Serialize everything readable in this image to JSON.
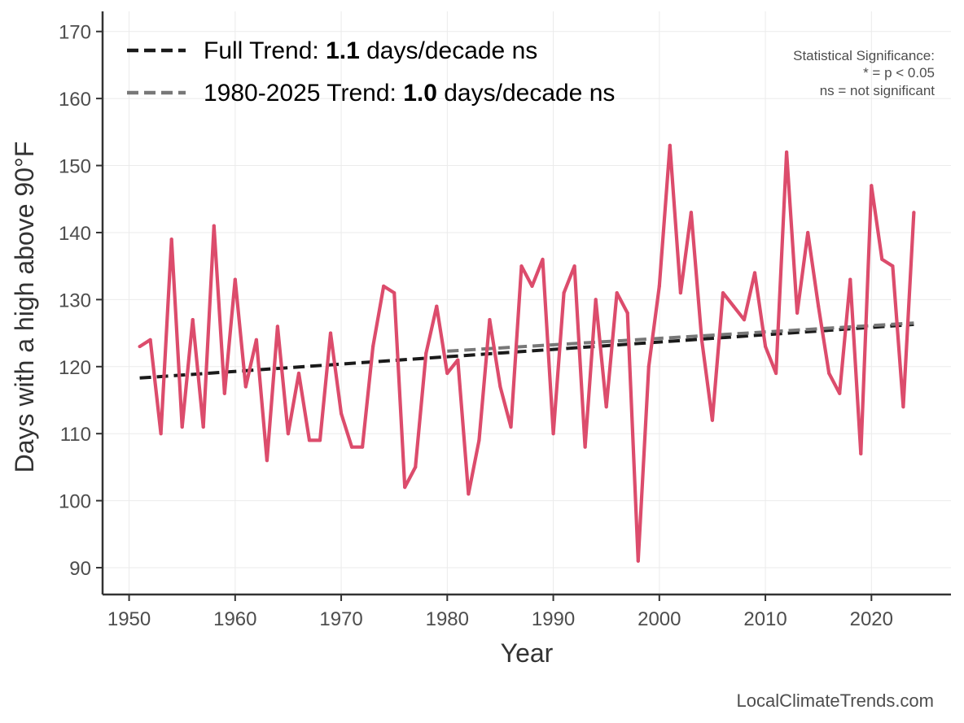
{
  "chart_data": {
    "type": "line",
    "xlabel": "Year",
    "ylabel": "Days with a high above 90°F",
    "xlim": [
      1947.5,
      2027.5
    ],
    "ylim": [
      86,
      173
    ],
    "x_ticks": [
      1950,
      1960,
      1970,
      1980,
      1990,
      2000,
      2010,
      2020
    ],
    "y_ticks": [
      90,
      100,
      110,
      120,
      130,
      140,
      150,
      160,
      170
    ],
    "grid": true,
    "colors": {
      "series": "#dc4c6c",
      "full_trend": "#1a1a1a",
      "recent_trend": "#787878",
      "axis": "#333333",
      "grid": "#ebebeb"
    },
    "series": [
      {
        "x": [
          1951,
          1952,
          1953,
          1954,
          1955,
          1956,
          1957,
          1958,
          1959,
          1960,
          1961,
          1962,
          1963,
          1964,
          1965,
          1966,
          1967,
          1968,
          1969,
          1970,
          1971,
          1972,
          1973,
          1974,
          1975,
          1976,
          1977,
          1978,
          1979,
          1980,
          1981,
          1982,
          1983,
          1984,
          1985,
          1986,
          1987,
          1988,
          1989,
          1990,
          1991,
          1992,
          1993,
          1994,
          1995,
          1996,
          1997,
          1998,
          1999,
          2000,
          2001,
          2002,
          2003,
          2004,
          2005,
          2006,
          2007,
          2008,
          2009,
          2010,
          2011,
          2012,
          2013,
          2014,
          2015,
          2016,
          2017,
          2018,
          2019,
          2020,
          2021,
          2022,
          2023,
          2024
        ],
        "values": [
          123,
          124,
          110,
          139,
          111,
          127,
          111,
          141,
          116,
          133,
          117,
          124,
          106,
          126,
          110,
          119,
          109,
          109,
          125,
          113,
          108,
          108,
          123,
          132,
          131,
          102,
          105,
          122,
          129,
          119,
          121,
          101,
          109,
          127,
          117,
          111,
          135,
          132,
          136,
          110,
          131,
          135,
          108,
          130,
          114,
          131,
          128,
          91,
          120,
          132,
          153,
          131,
          143,
          124,
          112,
          131,
          129,
          127,
          134,
          123,
          119,
          152,
          128,
          140,
          129,
          119,
          116,
          133,
          107,
          147,
          136,
          135,
          114,
          143
        ]
      }
    ],
    "trends": [
      {
        "name": "Full Trend",
        "x": [
          1951,
          2024
        ],
        "values": [
          118.3,
          126.3
        ],
        "dash": "long"
      },
      {
        "name": "1980-2025 Trend",
        "x": [
          1980,
          2024
        ],
        "values": [
          122.3,
          126.5
        ],
        "dash": "long"
      }
    ],
    "legend": {
      "placement": "top-left",
      "entries": [
        {
          "prefix": "Full Trend: ",
          "value": "1.1",
          "suffix": " days/decade ns"
        },
        {
          "prefix": "1980-2025 Trend: ",
          "value": "1.0",
          "suffix": " days/decade ns"
        }
      ]
    },
    "significance_note": {
      "placement": "top-right",
      "lines": [
        "Statistical Significance:",
        "* = p < 0.05",
        "ns = not significant"
      ]
    },
    "source": "LocalClimateTrends.com"
  }
}
